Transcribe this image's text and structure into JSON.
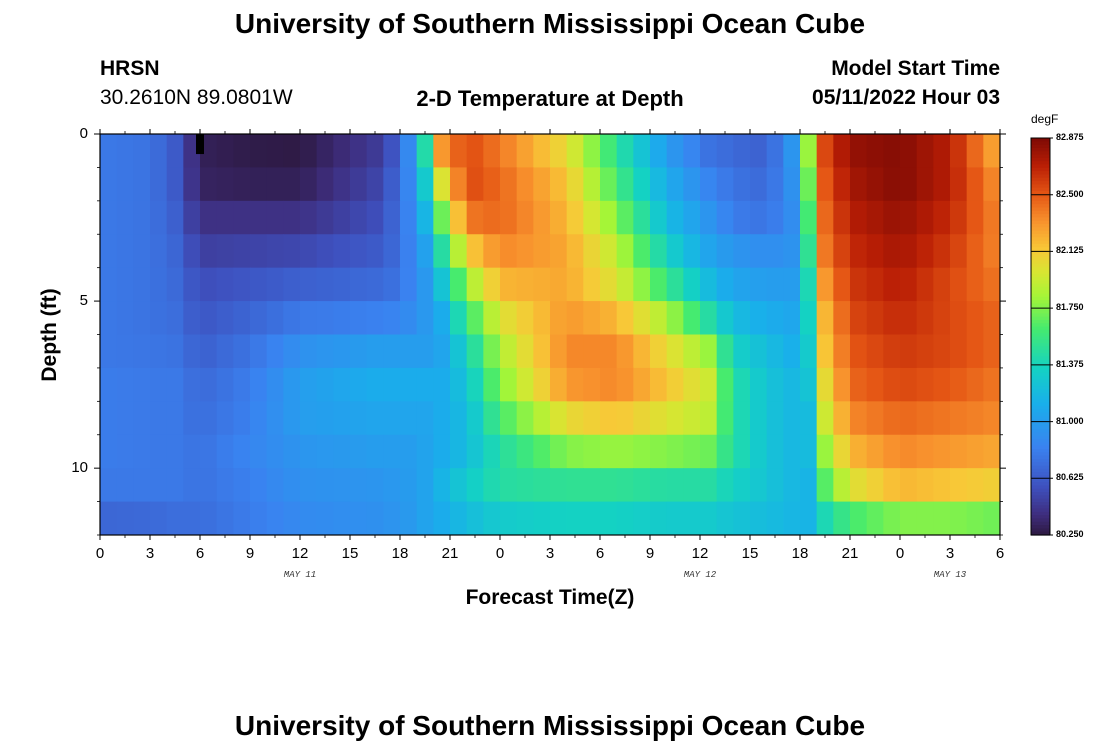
{
  "header": {
    "title": "University of Southern Mississippi Ocean Cube",
    "station": "HRSN",
    "coordinates": "30.2610N  89.0801W",
    "plot_title": "2-D Temperature at Depth",
    "model_start_label": "Model Start Time",
    "model_start_value": "05/11/2022 Hour 03"
  },
  "footer": {
    "title": "University of Southern Mississippi Ocean Cube"
  },
  "colors": {
    "background": "#ffffff",
    "marker": "#000000"
  },
  "chart_data": {
    "type": "heatmap",
    "title": "2-D Temperature at Depth",
    "xlabel": "Forecast Time(Z)",
    "ylabel": "Depth (ft)",
    "x_tick_labels": [
      "0",
      "3",
      "6",
      "9",
      "12",
      "15",
      "18",
      "21",
      "0",
      "3",
      "6",
      "9",
      "12",
      "15",
      "18",
      "21",
      "0",
      "3",
      "6"
    ],
    "x_hours": [
      0,
      3,
      6,
      9,
      12,
      15,
      18,
      21,
      24,
      27,
      30,
      33,
      36,
      39,
      42,
      45,
      48,
      51,
      54
    ],
    "x_range_hours": [
      0,
      54
    ],
    "date_labels": [
      {
        "label": "MAY 11",
        "hour": 12
      },
      {
        "label": "MAY 12",
        "hour": 36
      },
      {
        "label": "MAY 13",
        "hour": 51
      }
    ],
    "y_ticks": [
      0,
      5,
      10
    ],
    "y_range_ft": [
      0,
      12
    ],
    "marker": {
      "hour": 6,
      "depth_ft": [
        0,
        0.6
      ]
    },
    "colorbar": {
      "unit": "degF",
      "min": 80.25,
      "max": 82.875,
      "tick_labels": [
        "82.875",
        "82.500",
        "82.125",
        "81.750",
        "81.375",
        "81.000",
        "80.625",
        "80.250"
      ],
      "tick_values": [
        82.875,
        82.5,
        82.125,
        81.75,
        81.375,
        81.0,
        80.625,
        80.25
      ]
    },
    "time_hours": [
      0,
      3,
      4.5,
      6,
      9,
      12,
      16.5,
      18,
      19,
      19.6,
      20.5,
      22,
      24,
      28,
      31,
      34,
      36.5,
      38,
      40,
      42,
      42.5,
      43.5,
      45,
      48,
      51,
      54
    ],
    "depths_ft": [
      0.5,
      1.5,
      2.5,
      3.5,
      4.5,
      5.5,
      6.5,
      7.5,
      8.5,
      9.5,
      10.5,
      11.5
    ],
    "values_degF": [
      [
        80.78,
        80.75,
        80.62,
        80.3,
        80.27,
        80.26,
        80.45,
        80.65,
        81.1,
        81.5,
        82.3,
        82.55,
        82.4,
        82.05,
        81.5,
        81.0,
        80.75,
        80.7,
        80.65,
        81.05,
        81.8,
        82.55,
        82.8,
        82.85,
        82.7,
        82.2
      ],
      [
        80.78,
        80.75,
        80.62,
        80.32,
        80.3,
        80.3,
        80.5,
        80.7,
        81.0,
        81.35,
        82.0,
        82.55,
        82.45,
        82.15,
        81.6,
        81.1,
        80.85,
        80.75,
        80.7,
        81.0,
        81.7,
        82.5,
        82.75,
        82.85,
        82.7,
        82.3
      ],
      [
        80.78,
        80.75,
        80.65,
        80.4,
        80.4,
        80.4,
        80.55,
        80.72,
        80.95,
        81.2,
        81.7,
        82.4,
        82.45,
        82.2,
        81.75,
        81.2,
        80.95,
        80.8,
        80.75,
        80.95,
        81.6,
        82.45,
        82.7,
        82.8,
        82.65,
        82.35
      ],
      [
        80.78,
        80.75,
        80.68,
        80.48,
        80.5,
        80.52,
        80.62,
        80.72,
        80.92,
        81.05,
        81.45,
        82.1,
        82.35,
        82.25,
        81.9,
        81.35,
        81.05,
        80.95,
        80.9,
        80.95,
        81.5,
        82.4,
        82.65,
        82.75,
        82.6,
        82.35
      ],
      [
        80.78,
        80.75,
        80.7,
        80.55,
        80.6,
        80.65,
        80.7,
        80.75,
        80.9,
        80.98,
        81.25,
        81.8,
        82.2,
        82.25,
        82.0,
        81.55,
        81.2,
        81.05,
        81.0,
        81.0,
        81.4,
        82.3,
        82.6,
        82.7,
        82.55,
        82.4
      ],
      [
        80.78,
        80.75,
        80.72,
        80.6,
        80.68,
        80.78,
        80.82,
        80.85,
        80.92,
        80.98,
        81.1,
        81.55,
        82.0,
        82.3,
        82.2,
        81.85,
        81.45,
        81.2,
        81.1,
        81.05,
        81.35,
        82.2,
        82.55,
        82.65,
        82.55,
        82.45
      ],
      [
        80.78,
        80.76,
        80.75,
        80.65,
        80.75,
        80.92,
        81.0,
        81.0,
        81.0,
        81.0,
        81.05,
        81.35,
        81.85,
        82.35,
        82.35,
        82.05,
        81.8,
        81.35,
        81.2,
        81.1,
        81.3,
        82.15,
        82.5,
        82.6,
        82.55,
        82.45
      ],
      [
        80.8,
        80.78,
        80.78,
        80.7,
        80.8,
        81.0,
        81.1,
        81.1,
        81.1,
        81.1,
        81.1,
        81.25,
        81.75,
        82.3,
        82.35,
        82.15,
        81.95,
        81.45,
        81.25,
        81.15,
        81.25,
        82.05,
        82.45,
        82.55,
        82.5,
        82.4
      ],
      [
        80.8,
        80.78,
        80.78,
        80.72,
        80.82,
        81.0,
        81.05,
        81.05,
        81.05,
        81.05,
        81.1,
        81.2,
        81.6,
        82.05,
        82.15,
        82.0,
        81.9,
        81.45,
        81.25,
        81.15,
        81.2,
        81.95,
        82.35,
        82.45,
        82.4,
        82.35
      ],
      [
        80.8,
        80.78,
        80.78,
        80.75,
        80.85,
        80.95,
        81.0,
        81.0,
        81.0,
        81.05,
        81.1,
        81.2,
        81.45,
        81.75,
        81.8,
        81.75,
        81.7,
        81.45,
        81.25,
        81.15,
        81.2,
        81.8,
        82.2,
        82.35,
        82.3,
        82.25
      ],
      [
        80.78,
        80.78,
        80.78,
        80.75,
        80.82,
        80.92,
        80.95,
        80.98,
        81.0,
        81.05,
        81.15,
        81.3,
        81.45,
        81.5,
        81.5,
        81.45,
        81.45,
        81.35,
        81.25,
        81.15,
        81.15,
        81.65,
        82.0,
        82.2,
        82.15,
        82.1
      ],
      [
        80.68,
        80.7,
        80.72,
        80.72,
        80.8,
        80.88,
        80.92,
        80.95,
        81.0,
        81.05,
        81.1,
        81.2,
        81.3,
        81.35,
        81.35,
        81.3,
        81.3,
        81.25,
        81.2,
        81.15,
        81.15,
        81.4,
        81.6,
        81.75,
        81.75,
        81.7
      ]
    ]
  }
}
